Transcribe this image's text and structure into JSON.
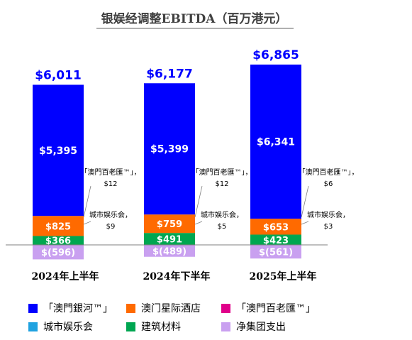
{
  "chart_data": {
    "type": "bar",
    "title": "银娱经调整EBITDA（百万港元）",
    "categories": [
      "2024年上半年",
      "2024年下半年",
      "2025年上半年"
    ],
    "totals": [
      "$6,011",
      "$6,177",
      "$6,865"
    ],
    "series": [
      {
        "key": "galaxy",
        "name": "「澳門銀河™」",
        "color": "#0000FF",
        "values": [
          5395,
          5399,
          6341
        ],
        "labels": [
          "$5,395",
          "$5,399",
          "$6,341"
        ]
      },
      {
        "key": "starworld",
        "name": "澳门星际酒店",
        "color": "#FF6A00",
        "values": [
          825,
          759,
          653
        ],
        "labels": [
          "$825",
          "$759",
          "$653"
        ]
      },
      {
        "key": "broadway",
        "name": "「澳門百老匯™」",
        "color": "#E0008A",
        "values": [
          12,
          12,
          6
        ],
        "labels": [
          "「澳門百老匯™」，\n$12",
          "「澳門百老匯™」，\n$12",
          "「澳門百老匯™」，\n$6"
        ]
      },
      {
        "key": "cityclub",
        "name": "城市娱乐会",
        "color": "#1FA2E0",
        "values": [
          9,
          5,
          3
        ],
        "labels": [
          "城市娱乐会，\n$9",
          "城市娱乐会，\n$5",
          "城市娱乐会，\n$3"
        ]
      },
      {
        "key": "construction",
        "name": "建筑材料",
        "color": "#00A651",
        "values": [
          366,
          491,
          423
        ],
        "labels": [
          "$366",
          "$491",
          "$423"
        ]
      },
      {
        "key": "corporate",
        "name": "净集团支出",
        "color": "#C9A0F0",
        "values": [
          -596,
          -489,
          -561
        ],
        "labels": [
          "$(596)",
          "$(489)",
          "$(561)"
        ]
      }
    ],
    "legend_position": "bottom",
    "grid": false
  }
}
